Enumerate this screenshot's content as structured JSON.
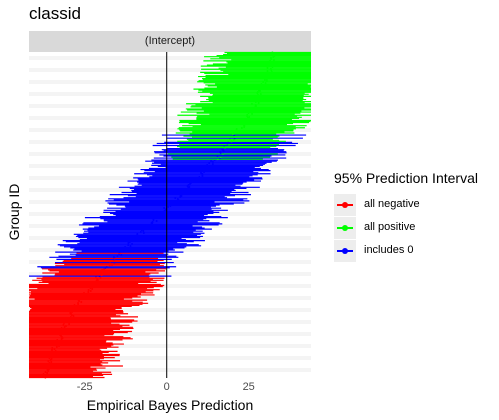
{
  "title": "classid",
  "chart_data": {
    "type": "interval",
    "facet_label": "(Intercept)",
    "xlabel": "Empirical Bayes Prediction",
    "ylabel": "Group ID",
    "xlim": [
      -42,
      44
    ],
    "x_ticks": [
      "-25",
      "0",
      "25"
    ],
    "x_tick_values": [
      -25,
      0,
      25
    ],
    "vline": 0,
    "n_groups": 312,
    "estimate_range": [
      -37,
      33
    ],
    "interval_halfwidth_range": [
      13,
      22
    ],
    "legend_title": "95% Prediction Interval",
    "legend": [
      {
        "label": "all negative",
        "color": "#ff0000"
      },
      {
        "label": "all positive",
        "color": "#00ff00"
      },
      {
        "label": "includes 0",
        "color": "#0000ff"
      }
    ]
  }
}
